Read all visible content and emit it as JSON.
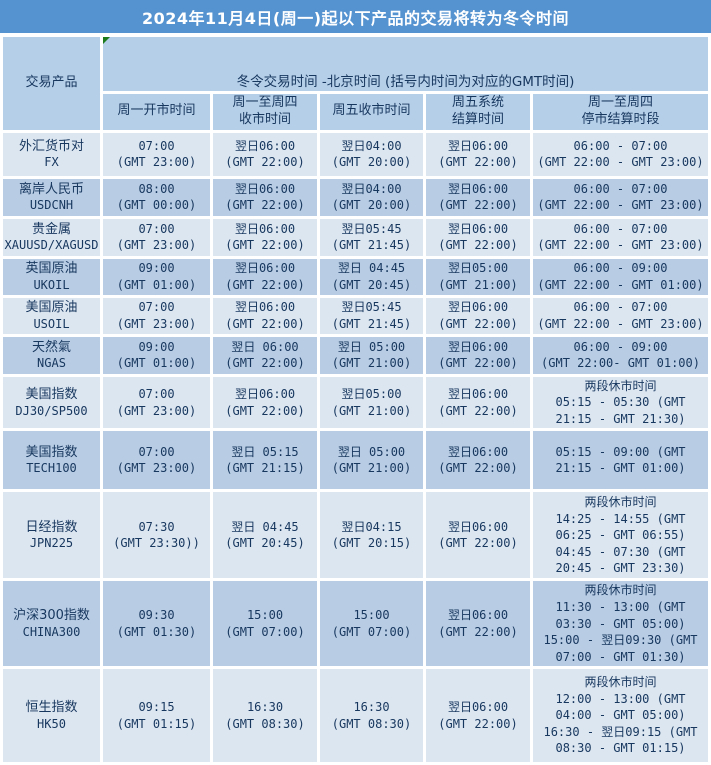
{
  "title": "2024年11月4日(周一)起以下产品的交易将转为冬令时间",
  "header": {
    "product_column": "交易产品",
    "group_header": "冬令交易时间 -北京时间 (括号内时间为对应的GMT时间)",
    "columns": [
      [
        "周一开市时间"
      ],
      [
        "周一至周四",
        "收市时间"
      ],
      [
        "周五收市时间"
      ],
      [
        "周五系统",
        "结算时间"
      ],
      [
        "周一至周四",
        "停市结算时段"
      ]
    ]
  },
  "rows": [
    {
      "name": "外汇货币对",
      "code": "FX",
      "open": [
        "07:00",
        "(GMT 23:00)"
      ],
      "close_mon_thu": [
        "翌日06:00",
        "(GMT 22:00)"
      ],
      "close_fri": [
        "翌日04:00",
        "(GMT 20:00)"
      ],
      "settle_fri": [
        "翌日06:00",
        "(GMT 22:00)"
      ],
      "halt": [
        "06:00 - 07:00",
        "(GMT 22:00 - GMT 23:00)"
      ]
    },
    {
      "name": "离岸人民币",
      "code": "USDCNH",
      "open": [
        "08:00",
        "(GMT 00:00)"
      ],
      "close_mon_thu": [
        "翌日06:00",
        "(GMT 22:00)"
      ],
      "close_fri": [
        "翌日04:00",
        "(GMT 20:00)"
      ],
      "settle_fri": [
        "翌日06:00",
        "(GMT 22:00)"
      ],
      "halt": [
        "06:00 - 07:00",
        "(GMT 22:00 - GMT 23:00)"
      ]
    },
    {
      "name": "贵金属",
      "code": "XAUUSD/XAGUSD",
      "open": [
        "07:00",
        "(GMT 23:00)"
      ],
      "close_mon_thu": [
        "翌日06:00",
        "(GMT 22:00)"
      ],
      "close_fri": [
        "翌日05:45",
        "(GMT 21:45)"
      ],
      "settle_fri": [
        "翌日06:00",
        "(GMT 22:00)"
      ],
      "halt": [
        "06:00 - 07:00",
        "(GMT 22:00 - GMT 23:00)"
      ]
    },
    {
      "name": "英国原油",
      "code": "UKOIL",
      "open": [
        "09:00",
        "(GMT 01:00)"
      ],
      "close_mon_thu": [
        "翌日06:00",
        "(GMT 22:00)"
      ],
      "close_fri": [
        "翌日 04:45",
        "(GMT 20:45)"
      ],
      "settle_fri": [
        "翌日05:00",
        "(GMT 21:00)"
      ],
      "halt": [
        "06:00 - 09:00",
        "(GMT 22:00 - GMT 01:00)"
      ]
    },
    {
      "name": "美国原油",
      "code": "USOIL",
      "open": [
        "07:00",
        "(GMT 23:00)"
      ],
      "close_mon_thu": [
        "翌日06:00",
        "(GMT 22:00)"
      ],
      "close_fri": [
        "翌日05:45",
        "(GMT 21:45)"
      ],
      "settle_fri": [
        "翌日06:00",
        "(GMT 22:00)"
      ],
      "halt": [
        "06:00 - 07:00",
        "(GMT 22:00 - GMT 23:00)"
      ]
    },
    {
      "name": "天然氣",
      "code": "NGAS",
      "open": [
        "09:00",
        "(GMT 01:00)"
      ],
      "close_mon_thu": [
        "翌日 06:00",
        "(GMT 22:00)"
      ],
      "close_fri": [
        "翌日 05:00",
        "(GMT 21:00)"
      ],
      "settle_fri": [
        "翌日06:00",
        "(GMT 22:00)"
      ],
      "halt": [
        "06:00 - 09:00",
        "(GMT 22:00- GMT 01:00)"
      ]
    },
    {
      "name": "美国指数",
      "code": "DJ30/SP500",
      "open": [
        "07:00",
        "(GMT 23:00)"
      ],
      "close_mon_thu": [
        "翌日06:00",
        "(GMT 22:00)"
      ],
      "close_fri": [
        "翌日05:00",
        "(GMT 21:00)"
      ],
      "settle_fri": [
        "翌日06:00",
        "(GMT 22:00)"
      ],
      "halt": [
        "两段休市时间",
        "05:15 - 05:30 (GMT",
        "21:15 - GMT 21:30)"
      ]
    },
    {
      "name": "美国指数",
      "code": "TECH100",
      "open": [
        "07:00",
        "(GMT 23:00)"
      ],
      "close_mon_thu": [
        "翌日 05:15",
        "(GMT 21:15)"
      ],
      "close_fri": [
        "翌日 05:00",
        "(GMT 21:00)"
      ],
      "settle_fri": [
        "翌日06:00",
        "(GMT 22:00)"
      ],
      "halt": [
        "05:15 - 09:00 (GMT",
        "21:15 - GMT 01:00)"
      ]
    },
    {
      "name": "日经指数",
      "code": "JPN225",
      "open": [
        "07:30",
        "(GMT 23:30))"
      ],
      "close_mon_thu": [
        "翌日 04:45",
        "(GMT 20:45)"
      ],
      "close_fri": [
        "翌日04:15",
        "(GMT 20:15)"
      ],
      "settle_fri": [
        "翌日06:00",
        "(GMT 22:00)"
      ],
      "halt": [
        "两段休市时间",
        "14:25 - 14:55 (GMT",
        "06:25 - GMT 06:55)",
        "04:45 - 07:30 (GMT",
        "20:45 - GMT 23:30)"
      ]
    },
    {
      "name": "沪深300指数",
      "code": "CHINA300",
      "open": [
        "09:30",
        "(GMT 01:30)"
      ],
      "close_mon_thu": [
        "15:00",
        "(GMT 07:00)"
      ],
      "close_fri": [
        "15:00",
        "(GMT 07:00)"
      ],
      "settle_fri": [
        "翌日06:00",
        "(GMT 22:00)"
      ],
      "halt": [
        "两段休市时间",
        "11:30 - 13:00 (GMT",
        "03:30 - GMT 05:00)",
        "15:00 - 翌日09:30 (GMT",
        "07:00 - GMT 01:30)"
      ]
    },
    {
      "name": "恒生指数",
      "code": "HK50",
      "open": [
        "09:15",
        "(GMT 01:15)"
      ],
      "close_mon_thu": [
        "16:30",
        "(GMT 08:30)"
      ],
      "close_fri": [
        "16:30",
        "(GMT 08:30)"
      ],
      "settle_fri": [
        "翌日06:00",
        "(GMT 22:00)"
      ],
      "halt": [
        "两段休市时间",
        "12:00 - 13:00 (GMT",
        "04:00 - GMT 05:00)",
        "16:30 - 翌日09:15 (GMT",
        "08:30 - GMT 01:15)"
      ]
    }
  ],
  "colors": {
    "title_bg": "#5593d0",
    "header_bg": "#b6cfe9",
    "row_light": "#dce6f1",
    "row_dark": "#b8cce4",
    "text": "#17375e",
    "grid": "#ffffff",
    "triangle": "#1c7a1c"
  }
}
